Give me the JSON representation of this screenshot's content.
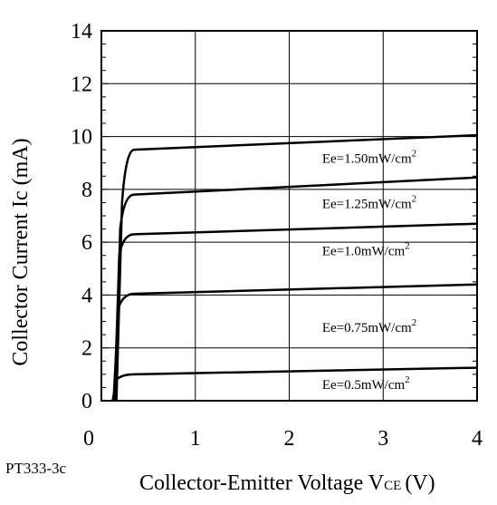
{
  "chart_data": {
    "type": "line",
    "xlabel": "Collector-Emitter Voltage V",
    "xlabel_sub": "CE",
    "xlabel_unit": "(V)",
    "ylabel": "Collector Current Ic (mA)",
    "xlim": [
      0,
      4
    ],
    "ylim": [
      0,
      14
    ],
    "x_ticks": [
      "0",
      "1",
      "2",
      "3",
      "4"
    ],
    "y_ticks": [
      "0",
      "2",
      "4",
      "6",
      "8",
      "10",
      "12",
      "14"
    ],
    "grid": true,
    "series": [
      {
        "name": "Ee=1.50mW/cm",
        "sup": "2",
        "points": [
          [
            0.16,
            0
          ],
          [
            0.22,
            7.5
          ],
          [
            0.26,
            9.2
          ],
          [
            0.35,
            9.5
          ],
          [
            4.0,
            10.05
          ]
        ],
        "label_pos": [
          2.35,
          9.0
        ]
      },
      {
        "name": "Ee=1.25mW/cm",
        "sup": "2",
        "points": [
          [
            0.15,
            0
          ],
          [
            0.2,
            6.5
          ],
          [
            0.24,
            7.6
          ],
          [
            0.35,
            7.8
          ],
          [
            4.0,
            8.45
          ]
        ],
        "label_pos": [
          2.35,
          7.3
        ]
      },
      {
        "name": "Ee=1.0mW/cm",
        "sup": "2",
        "points": [
          [
            0.14,
            0
          ],
          [
            0.19,
            5.5
          ],
          [
            0.23,
            6.2
          ],
          [
            0.35,
            6.3
          ],
          [
            4.0,
            6.7
          ]
        ],
        "label_pos": [
          2.35,
          5.5
        ]
      },
      {
        "name": "Ee=0.75mW/cm",
        "sup": "2",
        "points": [
          [
            0.13,
            0
          ],
          [
            0.18,
            3.5
          ],
          [
            0.23,
            4.0
          ],
          [
            0.35,
            4.05
          ],
          [
            4.0,
            4.4
          ]
        ],
        "label_pos": [
          2.35,
          2.6
        ]
      },
      {
        "name": "Ee=0.5mW/cm",
        "sup": "2",
        "points": [
          [
            0.12,
            0
          ],
          [
            0.16,
            0.8
          ],
          [
            0.22,
            1.0
          ],
          [
            0.35,
            1.0
          ],
          [
            4.0,
            1.25
          ]
        ],
        "label_pos": [
          2.35,
          0.45
        ]
      }
    ]
  },
  "figure_id": "PT333-3c"
}
